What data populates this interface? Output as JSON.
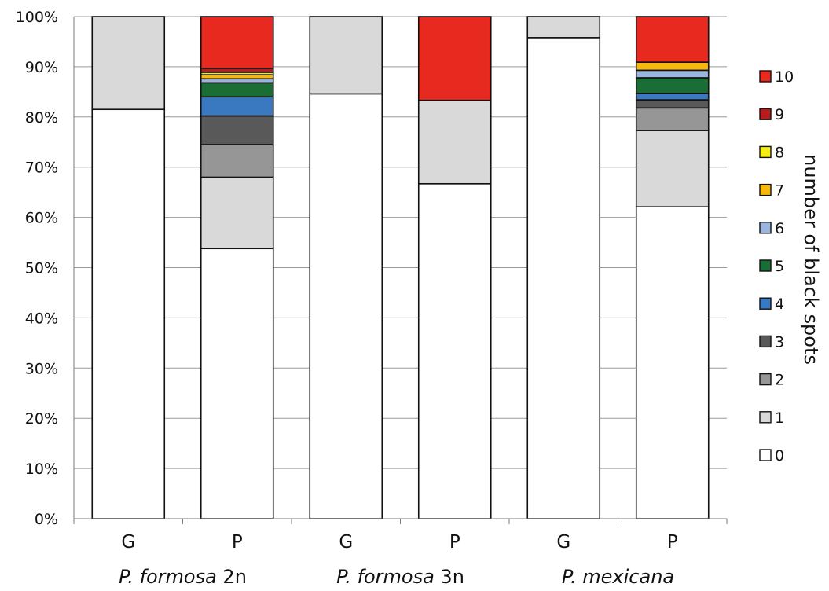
{
  "chart_data": {
    "type": "bar",
    "stacked": true,
    "percent": true,
    "ylim": [
      0,
      100
    ],
    "yticks": [
      "0%",
      "10%",
      "20%",
      "30%",
      "40%",
      "50%",
      "60%",
      "70%",
      "80%",
      "90%",
      "100%"
    ],
    "grid": true,
    "legend_title": "number of black spots",
    "legend_position": "right",
    "categories": [
      "G",
      "P",
      "G",
      "P",
      "G",
      "P"
    ],
    "groups": [
      {
        "name_parts": [
          {
            "text": "P. formosa",
            "italic": true
          },
          {
            "text": " 2n",
            "italic": false
          }
        ]
      },
      {
        "name_parts": [
          {
            "text": "P. formosa",
            "italic": true
          },
          {
            "text": " 3n",
            "italic": false
          }
        ]
      },
      {
        "name_parts": [
          {
            "text": "P. mexicana",
            "italic": true
          }
        ]
      }
    ],
    "series": [
      {
        "name": "0",
        "color": "#ffffff",
        "values": [
          81.5,
          53.8,
          84.6,
          66.7,
          95.8,
          62.1
        ]
      },
      {
        "name": "1",
        "color": "#d9d9d9",
        "values": [
          18.5,
          14.2,
          15.4,
          16.6,
          4.2,
          15.2
        ]
      },
      {
        "name": "2",
        "color": "#969696",
        "values": [
          0,
          6.5,
          0,
          0,
          0,
          4.5
        ]
      },
      {
        "name": "3",
        "color": "#595959",
        "values": [
          0,
          5.7,
          0,
          0,
          0,
          1.6
        ]
      },
      {
        "name": "4",
        "color": "#3a78c0",
        "values": [
          0,
          3.8,
          0,
          0,
          0,
          1.3
        ]
      },
      {
        "name": "5",
        "color": "#1a6e35",
        "values": [
          0,
          2.8,
          0,
          0,
          0,
          3.1
        ]
      },
      {
        "name": "6",
        "color": "#9ab6e0",
        "values": [
          0,
          0.8,
          0,
          0,
          0,
          1.5
        ]
      },
      {
        "name": "7",
        "color": "#f7b80e",
        "values": [
          0,
          0.8,
          0,
          0,
          0,
          1.6
        ]
      },
      {
        "name": "8",
        "color": "#f5ec12",
        "values": [
          0,
          0.5,
          0,
          0,
          0,
          0
        ]
      },
      {
        "name": "9",
        "color": "#b71c1c",
        "values": [
          0,
          0.8,
          0,
          0,
          0,
          0
        ]
      },
      {
        "name": "10",
        "color": "#e8291f",
        "values": [
          0,
          10.3,
          0,
          16.7,
          0,
          9.1
        ]
      }
    ]
  }
}
